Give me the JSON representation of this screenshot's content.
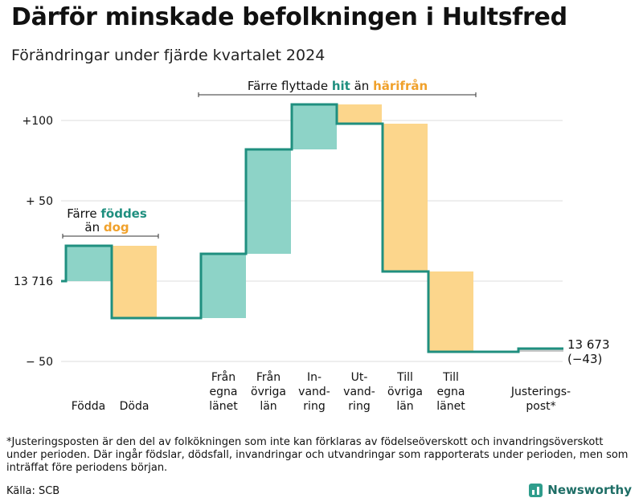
{
  "title": "Därför minskade befolkningen i Hultsfred",
  "subtitle": "Förändringar under fjärde kvartalet 2024",
  "footnote": "*Justeringsposten är den del av folkökningen som inte kan förklaras av födelseöverskott och invandringsöverskott under perioden. Där ingår födslar, dödsfall, invandringar och utvandringar som rapporterats under perioden, men som inträffat före periodens början.",
  "source": "Källa: SCB",
  "brand": {
    "name": "Newsworthy",
    "icon": "newsworthy-logo-icon"
  },
  "colors": {
    "increase": "#8dd3c7",
    "decrease": "#fcd68c",
    "line": "#1f8f7f",
    "hit_text": "#1f8f7f",
    "harifran_text": "#f0a12b",
    "grid": "#dddddd"
  },
  "chart_data": {
    "type": "waterfall",
    "start_value": 13716,
    "start_label": "13 716",
    "end_value": 13673,
    "end_label": "13 673",
    "end_change_label": "(−43)",
    "y_ticks": [
      {
        "value": 100,
        "label": "+100"
      },
      {
        "value": 50,
        "label": "+ 50"
      },
      {
        "value": 0,
        "label": "13 716"
      },
      {
        "value": -50,
        "label": "− 50"
      }
    ],
    "ylim": [
      -55,
      112
    ],
    "categories": [
      {
        "label": "Födda",
        "change": 22,
        "kind": "increase"
      },
      {
        "label": "Döda",
        "change": -45,
        "kind": "decrease"
      },
      {
        "label": "Från egna länet",
        "change": 40,
        "kind": "increase"
      },
      {
        "label": "Från övriga län",
        "change": 65,
        "kind": "increase"
      },
      {
        "label": "In-vand-ring",
        "change": 28,
        "kind": "increase"
      },
      {
        "label": "Ut-vand-ring",
        "change": -12,
        "kind": "decrease"
      },
      {
        "label": "Till övriga län",
        "change": -92,
        "kind": "decrease"
      },
      {
        "label": "Till egna länet",
        "change": -50,
        "kind": "decrease"
      },
      {
        "label": "Justerings-post*",
        "change": 2,
        "kind": "adjustment"
      }
    ],
    "annotations": [
      {
        "parts": [
          "Färre ",
          "föddes"
        ],
        "line2": [
          "än ",
          "dog"
        ]
      },
      {
        "parts": [
          "Färre flyttade ",
          "hit",
          " än ",
          "härifrån"
        ]
      }
    ]
  }
}
